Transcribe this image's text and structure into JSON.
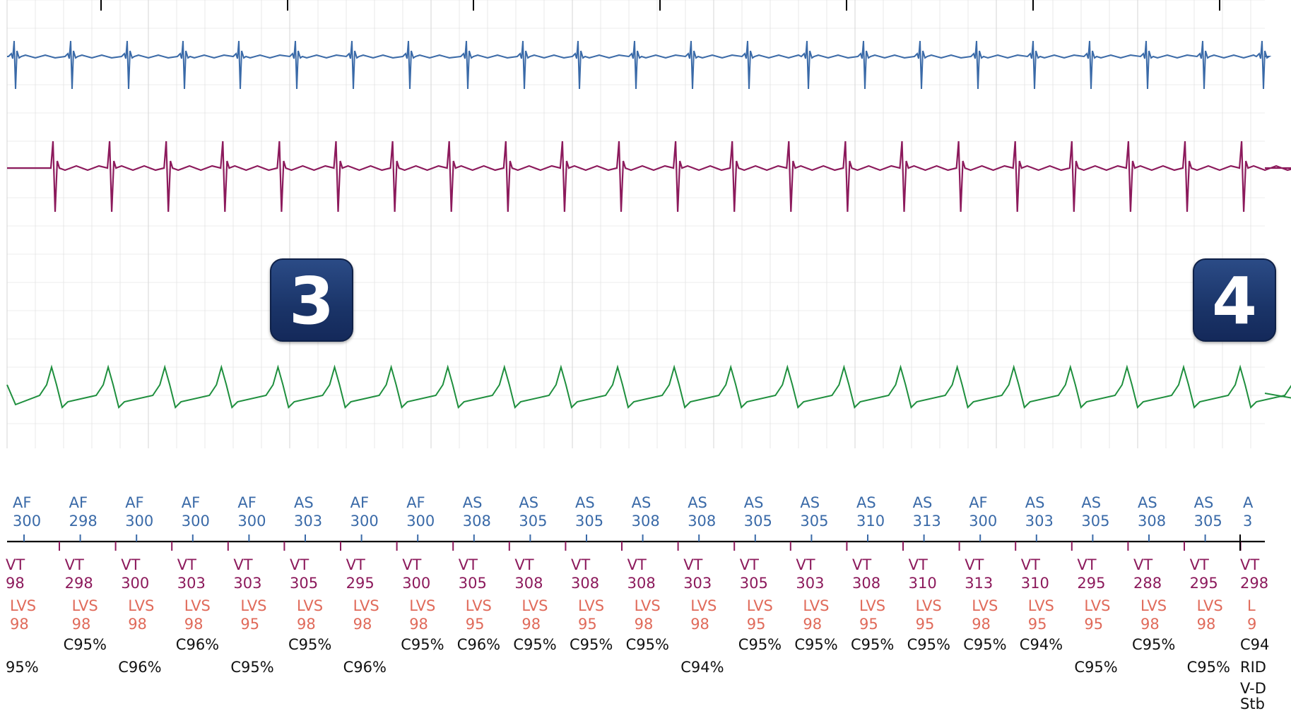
{
  "colors": {
    "atrial": "#3a6aa8",
    "ventricular": "#8c1a5c",
    "shock": "#1f8f3e",
    "lvs": "#e06a5a",
    "confidence": "#111111",
    "grid": "#dcdcdc"
  },
  "badges": [
    "3",
    "4"
  ],
  "marker_columns": [
    {
      "a_code": "AF",
      "a_val": "300",
      "v_code": "VT",
      "v_val": "98",
      "l_code": "LVS",
      "l_val": "98",
      "c1": "",
      "c2": "95%"
    },
    {
      "a_code": "AF",
      "a_val": "298",
      "v_code": "VT",
      "v_val": "298",
      "l_code": "LVS",
      "l_val": "98",
      "c1": "C95%",
      "c2": ""
    },
    {
      "a_code": "AF",
      "a_val": "300",
      "v_code": "VT",
      "v_val": "300",
      "l_code": "LVS",
      "l_val": "98",
      "c1": "",
      "c2": "C96%"
    },
    {
      "a_code": "AF",
      "a_val": "300",
      "v_code": "VT",
      "v_val": "303",
      "l_code": "LVS",
      "l_val": "98",
      "c1": "C96%",
      "c2": ""
    },
    {
      "a_code": "AF",
      "a_val": "300",
      "v_code": "VT",
      "v_val": "303",
      "l_code": "LVS",
      "l_val": "95",
      "c1": "",
      "c2": "C95%"
    },
    {
      "a_code": "AS",
      "a_val": "303",
      "v_code": "VT",
      "v_val": "305",
      "l_code": "LVS",
      "l_val": "98",
      "c1": "C95%",
      "c2": ""
    },
    {
      "a_code": "AF",
      "a_val": "300",
      "v_code": "VT",
      "v_val": "295",
      "l_code": "LVS",
      "l_val": "98",
      "c1": "",
      "c2": "C96%"
    },
    {
      "a_code": "AF",
      "a_val": "300",
      "v_code": "VT",
      "v_val": "300",
      "l_code": "LVS",
      "l_val": "98",
      "c1": "C95%",
      "c2": ""
    },
    {
      "a_code": "AS",
      "a_val": "308",
      "v_code": "VT",
      "v_val": "305",
      "l_code": "LVS",
      "l_val": "95",
      "c1": "C96%",
      "c2": ""
    },
    {
      "a_code": "AS",
      "a_val": "305",
      "v_code": "VT",
      "v_val": "308",
      "l_code": "LVS",
      "l_val": "98",
      "c1": "C95%",
      "c2": ""
    },
    {
      "a_code": "AS",
      "a_val": "305",
      "v_code": "VT",
      "v_val": "308",
      "l_code": "LVS",
      "l_val": "95",
      "c1": "C95%",
      "c2": ""
    },
    {
      "a_code": "AS",
      "a_val": "308",
      "v_code": "VT",
      "v_val": "308",
      "l_code": "LVS",
      "l_val": "98",
      "c1": "C95%",
      "c2": ""
    },
    {
      "a_code": "AS",
      "a_val": "308",
      "v_code": "VT",
      "v_val": "303",
      "l_code": "LVS",
      "l_val": "98",
      "c1": "",
      "c2": "C94%"
    },
    {
      "a_code": "AS",
      "a_val": "305",
      "v_code": "VT",
      "v_val": "305",
      "l_code": "LVS",
      "l_val": "95",
      "c1": "C95%",
      "c2": ""
    },
    {
      "a_code": "AS",
      "a_val": "305",
      "v_code": "VT",
      "v_val": "303",
      "l_code": "LVS",
      "l_val": "98",
      "c1": "C95%",
      "c2": ""
    },
    {
      "a_code": "AS",
      "a_val": "310",
      "v_code": "VT",
      "v_val": "308",
      "l_code": "LVS",
      "l_val": "95",
      "c1": "C95%",
      "c2": ""
    },
    {
      "a_code": "AS",
      "a_val": "313",
      "v_code": "VT",
      "v_val": "310",
      "l_code": "LVS",
      "l_val": "95",
      "c1": "C95%",
      "c2": ""
    },
    {
      "a_code": "AF",
      "a_val": "300",
      "v_code": "VT",
      "v_val": "313",
      "l_code": "LVS",
      "l_val": "98",
      "c1": "C95%",
      "c2": ""
    },
    {
      "a_code": "AS",
      "a_val": "303",
      "v_code": "VT",
      "v_val": "310",
      "l_code": "LVS",
      "l_val": "95",
      "c1": "C94%",
      "c2": ""
    },
    {
      "a_code": "AS",
      "a_val": "305",
      "v_code": "VT",
      "v_val": "295",
      "l_code": "LVS",
      "l_val": "95",
      "c1": "",
      "c2": "C95%"
    },
    {
      "a_code": "AS",
      "a_val": "308",
      "v_code": "VT",
      "v_val": "288",
      "l_code": "LVS",
      "l_val": "98",
      "c1": "C95%",
      "c2": ""
    },
    {
      "a_code": "AS",
      "a_val": "305",
      "v_code": "VT",
      "v_val": "295",
      "l_code": "LVS",
      "l_val": "98",
      "c1": "",
      "c2": "C95%"
    }
  ],
  "right_edge": {
    "a_code": "A",
    "a_val": "3",
    "v_code": "VT",
    "v_val": "298",
    "l_code": "L",
    "l_val": "9",
    "c1": "C94",
    "c2": "RID",
    "c3": "V-D",
    "c4": "Stb"
  }
}
